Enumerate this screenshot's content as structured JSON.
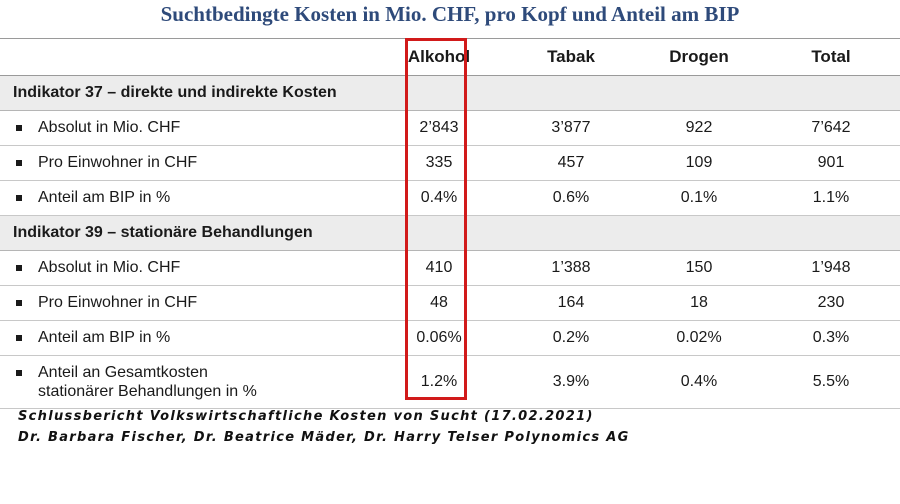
{
  "title": "Suchtbedingte Kosten in Mio. CHF, pro Kopf und Anteil am BIP",
  "columns": [
    "Alkohol",
    "Tabak",
    "Drogen",
    "Total"
  ],
  "sections": [
    {
      "label": "Indikator 37 – direkte und indirekte Kosten",
      "rows": [
        {
          "label": "Absolut in Mio. CHF",
          "values": [
            "2’843",
            "3’877",
            "922",
            "7’642"
          ]
        },
        {
          "label": "Pro Einwohner in CHF",
          "values": [
            "335",
            "457",
            "109",
            "901"
          ]
        },
        {
          "label": "Anteil am BIP in %",
          "values": [
            "0.4%",
            "0.6%",
            "0.1%",
            "1.1%"
          ]
        }
      ]
    },
    {
      "label": "Indikator 39 – stationäre Behandlungen",
      "rows": [
        {
          "label": "Absolut in Mio. CHF",
          "values": [
            "410",
            "1’388",
            "150",
            "1’948"
          ]
        },
        {
          "label": "Pro Einwohner in CHF",
          "values": [
            "48",
            "164",
            "18",
            "230"
          ]
        },
        {
          "label": "Anteil am BIP in %",
          "values": [
            "0.06%",
            "0.2%",
            "0.02%",
            "0.3%"
          ]
        },
        {
          "label_line1": "Anteil an Gesamtkosten",
          "label_line2": "stationärer Behandlungen in %",
          "values": [
            "1.2%",
            "3.9%",
            "0.4%",
            "5.5%"
          ]
        }
      ]
    }
  ],
  "footer": {
    "line1": "Schlussbericht Volkswirtschaftliche Kosten von Sucht (17.02.2021)",
    "line2": "Dr. Barbara Fischer, Dr. Beatrice Mäder, Dr. Harry Telser Polynomics AG"
  },
  "colors": {
    "title": "#2e4a7a",
    "highlight": "#d11a1a",
    "section_bg": "#ececec"
  }
}
